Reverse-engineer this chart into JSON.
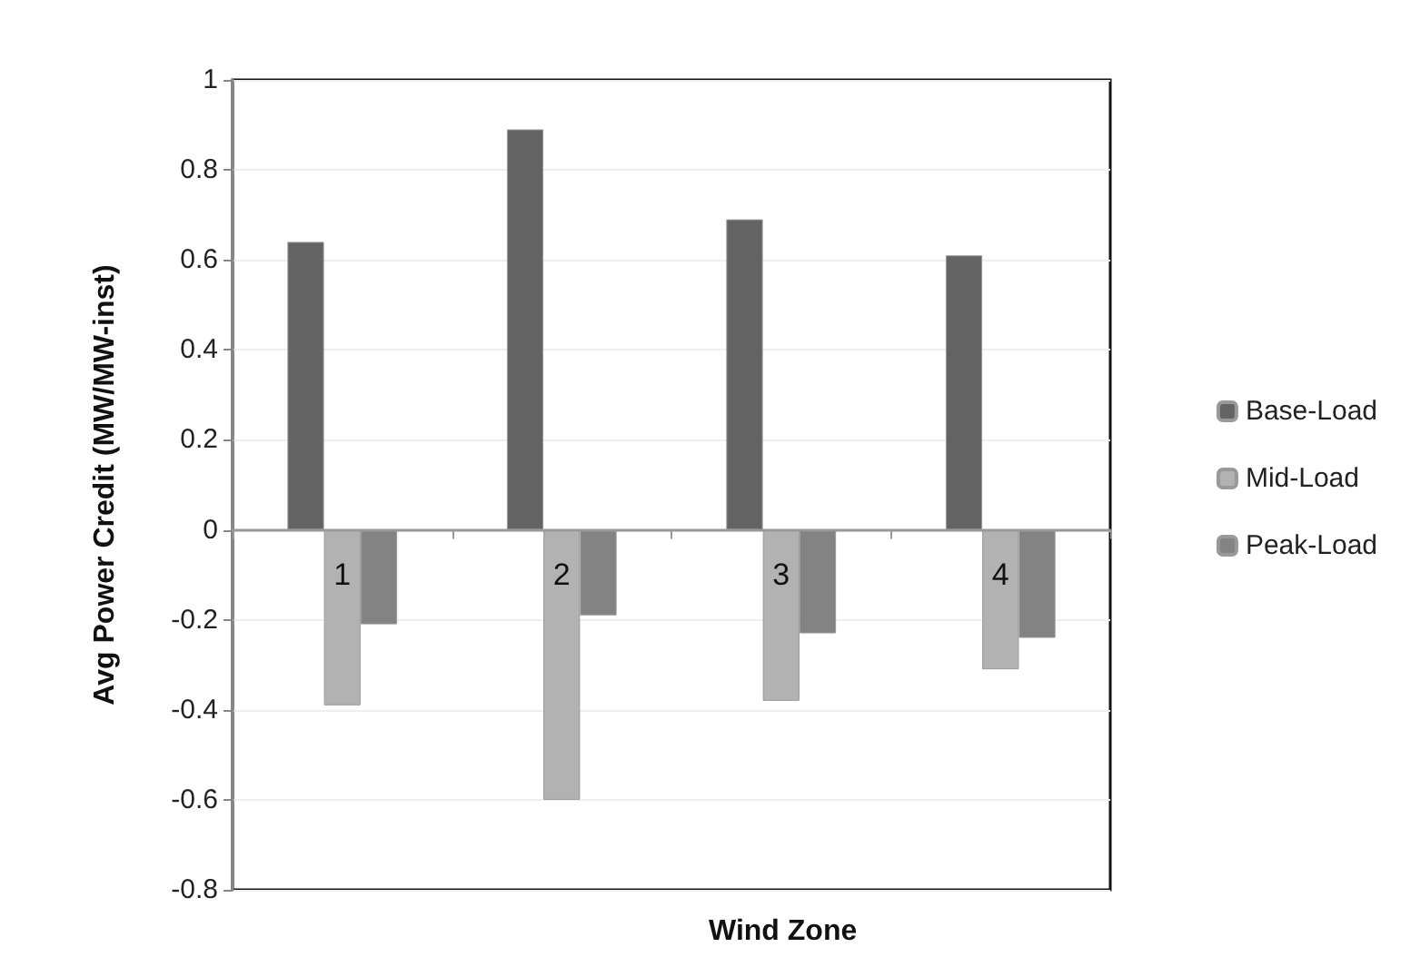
{
  "chart_data": {
    "type": "bar",
    "xlabel": "Wind Zone",
    "ylabel": "Avg Power Credit (MW/MW-inst)",
    "categories": [
      "1",
      "2",
      "3",
      "4"
    ],
    "series": [
      {
        "name": "Base-Load",
        "color": "#636363",
        "values": [
          0.64,
          0.89,
          0.69,
          0.61
        ]
      },
      {
        "name": "Mid-Load",
        "color": "#b2b2b2",
        "values": [
          -0.39,
          -0.6,
          -0.38,
          -0.31
        ]
      },
      {
        "name": "Peak-Load",
        "color": "#838383",
        "values": [
          -0.21,
          -0.19,
          -0.23,
          -0.24
        ]
      }
    ],
    "ylim": [
      -0.8,
      1
    ],
    "yticks": [
      -0.8,
      -0.6,
      -0.4,
      -0.2,
      0,
      0.2,
      0.4,
      0.6,
      0.8,
      1
    ],
    "grid": "y",
    "legend": "right"
  }
}
